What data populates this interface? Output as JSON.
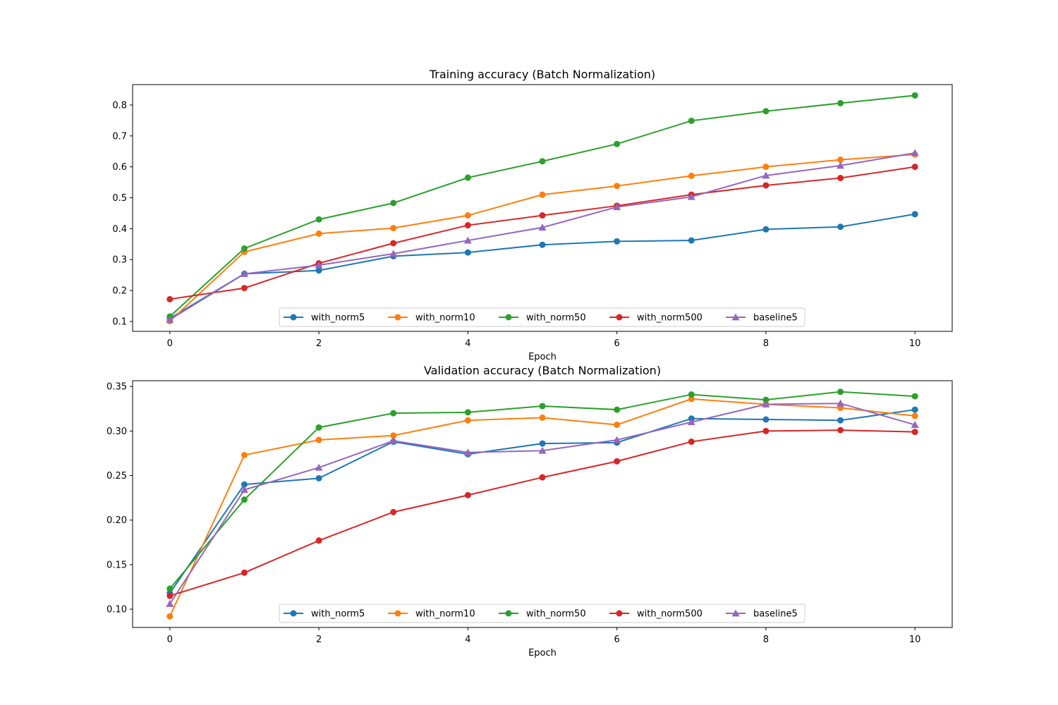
{
  "chart_data": [
    {
      "type": "line",
      "title": "Training accuracy (Batch Normalization)",
      "xlabel": "Epoch",
      "ylabel": "",
      "x": [
        0,
        1,
        2,
        3,
        4,
        5,
        6,
        7,
        8,
        9,
        10
      ],
      "xlim": [
        -0.5,
        10.5
      ],
      "ylim": [
        0.068,
        0.866
      ],
      "x_ticks": [
        "0",
        "2",
        "4",
        "6",
        "8",
        "10"
      ],
      "y_ticks": [
        "0.1",
        "0.2",
        "0.3",
        "0.4",
        "0.5",
        "0.6",
        "0.7",
        "0.8"
      ],
      "grid": false,
      "legend_position": "lower center",
      "series": [
        {
          "name": "with_norm5",
          "color": "#1f77b4",
          "marker": "circle",
          "values": [
            0.11,
            0.254,
            0.265,
            0.311,
            0.323,
            0.348,
            0.359,
            0.362,
            0.398,
            0.406,
            0.447
          ]
        },
        {
          "name": "with_norm10",
          "color": "#ff7f0e",
          "marker": "circle",
          "values": [
            0.101,
            0.325,
            0.384,
            0.402,
            0.443,
            0.51,
            0.538,
            0.571,
            0.6,
            0.623,
            0.64
          ]
        },
        {
          "name": "with_norm50",
          "color": "#2ca02c",
          "marker": "circle",
          "values": [
            0.116,
            0.336,
            0.43,
            0.483,
            0.565,
            0.618,
            0.674,
            0.749,
            0.78,
            0.806,
            0.831
          ]
        },
        {
          "name": "with_norm500",
          "color": "#d62728",
          "marker": "circle",
          "values": [
            0.172,
            0.208,
            0.288,
            0.353,
            0.411,
            0.443,
            0.474,
            0.51,
            0.54,
            0.564,
            0.6
          ]
        },
        {
          "name": "baseline5",
          "color": "#9467bd",
          "marker": "triangle",
          "values": [
            0.106,
            0.254,
            0.282,
            0.319,
            0.362,
            0.404,
            0.47,
            0.503,
            0.572,
            0.604,
            0.645
          ]
        }
      ]
    },
    {
      "type": "line",
      "title": "Validation accuracy (Batch Normalization)",
      "xlabel": "Epoch",
      "ylabel": "",
      "x": [
        0,
        1,
        2,
        3,
        4,
        5,
        6,
        7,
        8,
        9,
        10
      ],
      "xlim": [
        -0.5,
        10.5
      ],
      "ylim": [
        0.0795,
        0.3565
      ],
      "x_ticks": [
        "0",
        "2",
        "4",
        "6",
        "8",
        "10"
      ],
      "y_ticks": [
        "0.10",
        "0.15",
        "0.20",
        "0.25",
        "0.30",
        "0.35"
      ],
      "grid": false,
      "legend_position": "lower center",
      "series": [
        {
          "name": "with_norm5",
          "color": "#1f77b4",
          "marker": "circle",
          "values": [
            0.118,
            0.24,
            0.247,
            0.288,
            0.274,
            0.286,
            0.287,
            0.314,
            0.313,
            0.312,
            0.324
          ]
        },
        {
          "name": "with_norm10",
          "color": "#ff7f0e",
          "marker": "circle",
          "values": [
            0.092,
            0.273,
            0.29,
            0.295,
            0.312,
            0.315,
            0.307,
            0.336,
            0.33,
            0.326,
            0.317
          ]
        },
        {
          "name": "with_norm50",
          "color": "#2ca02c",
          "marker": "circle",
          "values": [
            0.123,
            0.223,
            0.304,
            0.32,
            0.321,
            0.328,
            0.324,
            0.341,
            0.335,
            0.344,
            0.339
          ]
        },
        {
          "name": "with_norm500",
          "color": "#d62728",
          "marker": "circle",
          "values": [
            0.115,
            0.141,
            0.177,
            0.209,
            0.228,
            0.248,
            0.266,
            0.288,
            0.3,
            0.301,
            0.299
          ]
        },
        {
          "name": "baseline5",
          "color": "#9467bd",
          "marker": "triangle",
          "values": [
            0.106,
            0.234,
            0.259,
            0.289,
            0.276,
            0.278,
            0.29,
            0.31,
            0.33,
            0.331,
            0.307
          ]
        }
      ]
    }
  ]
}
